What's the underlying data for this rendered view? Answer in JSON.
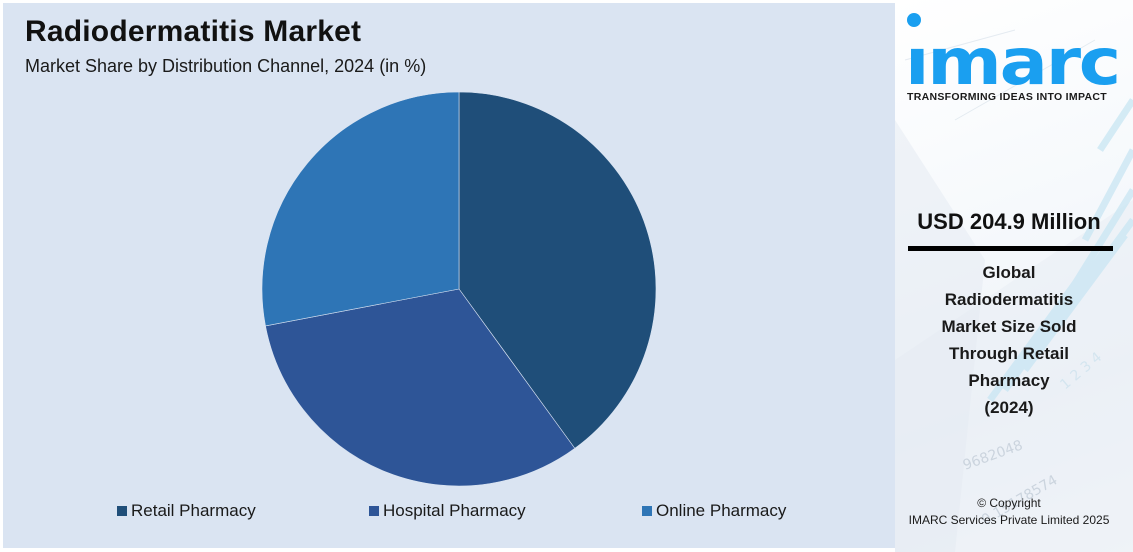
{
  "header": {
    "title": "Radiodermatitis Market",
    "subtitle": "Market Share by Distribution Channel, 2024 (in %)"
  },
  "chart_data": {
    "type": "pie",
    "title": "Radiodermatitis Market",
    "subtitle": "Market Share by Distribution Channel, 2024 (in %)",
    "categories": [
      "Retail Pharmacy",
      "Hospital Pharmacy",
      "Online Pharmacy"
    ],
    "values": [
      40,
      32,
      28
    ],
    "colors": [
      "#1f4e79",
      "#2e5597",
      "#2e75b6"
    ],
    "start_angle": "12 o'clock, clockwise",
    "legend_position": "bottom",
    "data_labels": false
  },
  "legend": {
    "items": [
      {
        "label": "Retail Pharmacy",
        "color": "#1f4e79"
      },
      {
        "label": "Hospital Pharmacy",
        "color": "#2e5597"
      },
      {
        "label": "Online Pharmacy",
        "color": "#2e75b6"
      }
    ]
  },
  "brand": {
    "logo_text": "imarc",
    "tagline": "TRANSFORMING IDEAS INTO IMPACT",
    "accent_color": "#1a9ff0"
  },
  "highlight": {
    "value": "USD 204.9 Million",
    "description_lines": [
      "Global",
      "Radiodermatitis",
      "Market Size Sold",
      "Through Retail",
      "Pharmacy",
      "(2024)"
    ]
  },
  "footer": {
    "copyright_line1": "© Copyright",
    "copyright_line2": "IMARC Services Private Limited 2025"
  },
  "colors": {
    "panel_background": "#dae4f2",
    "side_background": "#f4f7fb"
  }
}
